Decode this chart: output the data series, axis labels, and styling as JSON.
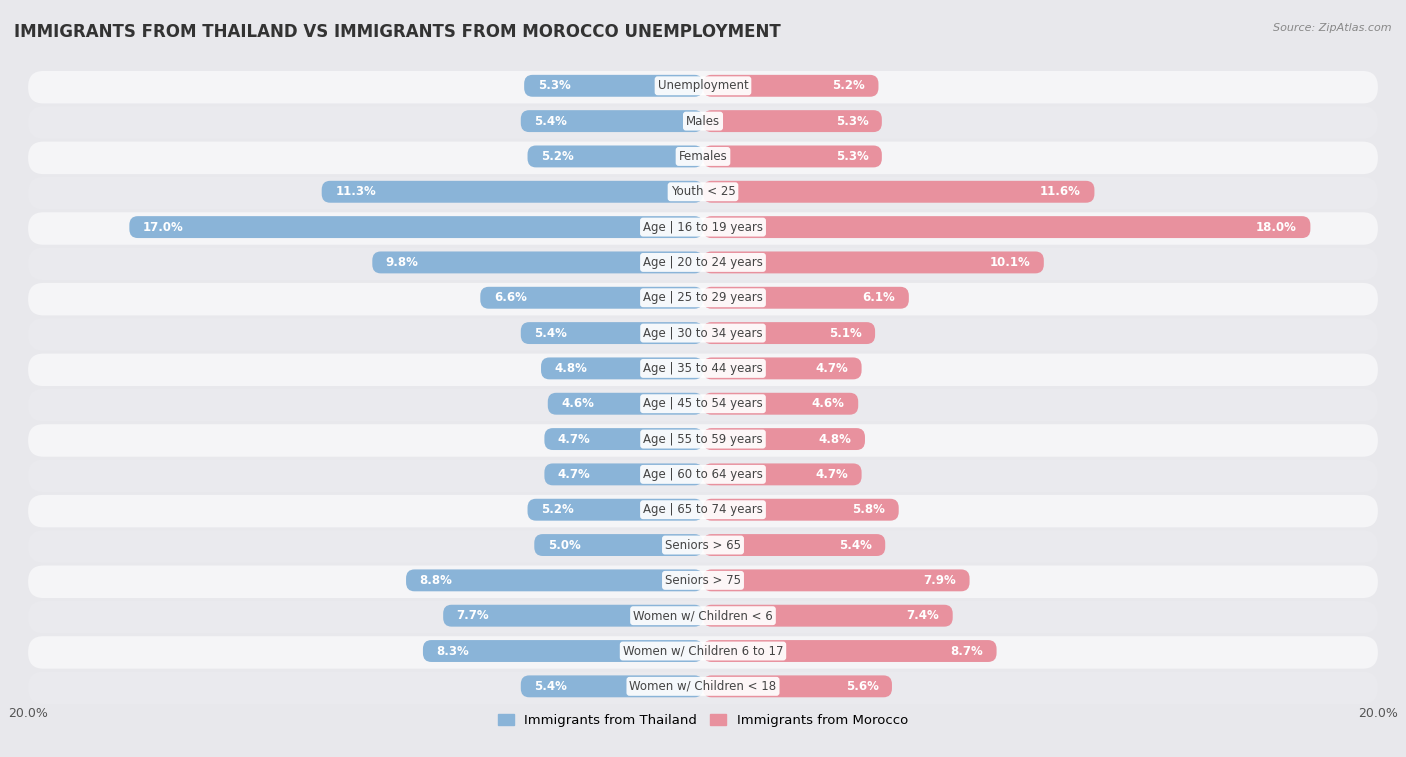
{
  "title": "IMMIGRANTS FROM THAILAND VS IMMIGRANTS FROM MOROCCO UNEMPLOYMENT",
  "source": "Source: ZipAtlas.com",
  "categories": [
    "Unemployment",
    "Males",
    "Females",
    "Youth < 25",
    "Age | 16 to 19 years",
    "Age | 20 to 24 years",
    "Age | 25 to 29 years",
    "Age | 30 to 34 years",
    "Age | 35 to 44 years",
    "Age | 45 to 54 years",
    "Age | 55 to 59 years",
    "Age | 60 to 64 years",
    "Age | 65 to 74 years",
    "Seniors > 65",
    "Seniors > 75",
    "Women w/ Children < 6",
    "Women w/ Children 6 to 17",
    "Women w/ Children < 18"
  ],
  "thailand_values": [
    5.3,
    5.4,
    5.2,
    11.3,
    17.0,
    9.8,
    6.6,
    5.4,
    4.8,
    4.6,
    4.7,
    4.7,
    5.2,
    5.0,
    8.8,
    7.7,
    8.3,
    5.4
  ],
  "morocco_values": [
    5.2,
    5.3,
    5.3,
    11.6,
    18.0,
    10.1,
    6.1,
    5.1,
    4.7,
    4.6,
    4.8,
    4.7,
    5.8,
    5.4,
    7.9,
    7.4,
    8.7,
    5.6
  ],
  "thailand_color": "#8ab4d8",
  "morocco_color": "#e8919e",
  "thailand_label": "Immigrants from Thailand",
  "morocco_label": "Immigrants from Morocco",
  "xlim": 20.0,
  "bg_color": "#e8e8ec",
  "row_color_even": "#f5f5f7",
  "row_color_odd": "#eaeaee",
  "title_fontsize": 12,
  "label_fontsize": 8.5,
  "value_fontsize": 8.5,
  "tick_fontsize": 9
}
